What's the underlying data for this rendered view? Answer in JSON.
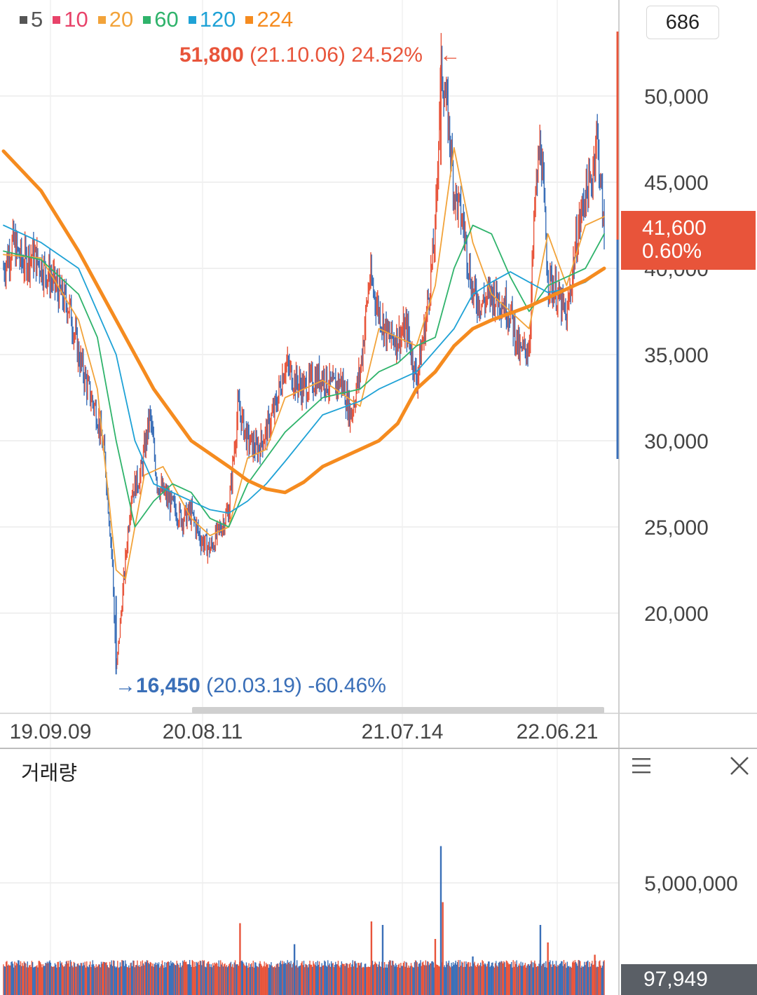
{
  "chart_data": [
    {
      "type": "line",
      "legend": [
        {
          "name": "5",
          "color": "#555555"
        },
        {
          "name": "10",
          "color": "#e8436a"
        },
        {
          "name": "20",
          "color": "#f2a33a"
        },
        {
          "name": "60",
          "color": "#2fb36b"
        },
        {
          "name": "120",
          "color": "#1fa2d6"
        },
        {
          "name": "224",
          "color": "#f58b1f"
        }
      ],
      "candle_up_color": "#e8543a",
      "candle_down_color": "#3a6fb8",
      "x_ticks": [
        "19.09.09",
        "20.08.11",
        "21.07.14",
        "22.06.21"
      ],
      "y_ticks": [
        "50,000",
        "45,000",
        "40,000",
        "35,000",
        "30,000",
        "25,000",
        "20,000"
      ],
      "ylim": [
        15000,
        55000
      ],
      "price_series": [
        {
          "t": 0,
          "v": 40000
        },
        {
          "t": 0.5,
          "v": 41500
        },
        {
          "t": 1,
          "v": 40300
        },
        {
          "t": 1.5,
          "v": 40800
        },
        {
          "t": 2,
          "v": 40200
        },
        {
          "t": 2.5,
          "v": 39500
        },
        {
          "t": 3,
          "v": 38500
        },
        {
          "t": 3.5,
          "v": 37800
        },
        {
          "t": 4,
          "v": 35000
        },
        {
          "t": 4.5,
          "v": 33000
        },
        {
          "t": 5,
          "v": 31500
        },
        {
          "t": 5.4,
          "v": 29000
        },
        {
          "t": 5.8,
          "v": 23000
        },
        {
          "t": 6.0,
          "v": 16450
        },
        {
          "t": 6.3,
          "v": 20500
        },
        {
          "t": 6.8,
          "v": 27000
        },
        {
          "t": 7.3,
          "v": 28000
        },
        {
          "t": 7.8,
          "v": 31500
        },
        {
          "t": 8.2,
          "v": 27500
        },
        {
          "t": 8.8,
          "v": 26500
        },
        {
          "t": 9.5,
          "v": 25500
        },
        {
          "t": 10,
          "v": 25800
        },
        {
          "t": 10.5,
          "v": 24300
        },
        {
          "t": 11,
          "v": 23700
        },
        {
          "t": 11.5,
          "v": 24800
        },
        {
          "t": 12,
          "v": 26000
        },
        {
          "t": 12.5,
          "v": 32000
        },
        {
          "t": 13,
          "v": 30000
        },
        {
          "t": 13.5,
          "v": 29500
        },
        {
          "t": 14,
          "v": 30500
        },
        {
          "t": 14.5,
          "v": 32000
        },
        {
          "t": 15,
          "v": 34500
        },
        {
          "t": 15.5,
          "v": 33500
        },
        {
          "t": 16,
          "v": 33000
        },
        {
          "t": 16.5,
          "v": 33500
        },
        {
          "t": 17,
          "v": 33800
        },
        {
          "t": 17.5,
          "v": 33000
        },
        {
          "t": 18,
          "v": 33500
        },
        {
          "t": 18.5,
          "v": 31500
        },
        {
          "t": 19,
          "v": 34000
        },
        {
          "t": 19.5,
          "v": 39500
        },
        {
          "t": 20,
          "v": 37500
        },
        {
          "t": 20.5,
          "v": 36000
        },
        {
          "t": 21,
          "v": 36000
        },
        {
          "t": 21.5,
          "v": 36500
        },
        {
          "t": 22,
          "v": 33500
        },
        {
          "t": 22.5,
          "v": 37000
        },
        {
          "t": 23,
          "v": 42000
        },
        {
          "t": 23.3,
          "v": 51800
        },
        {
          "t": 23.7,
          "v": 48500
        },
        {
          "t": 24,
          "v": 44500
        },
        {
          "t": 24.5,
          "v": 42500
        },
        {
          "t": 25,
          "v": 38500
        },
        {
          "t": 25.5,
          "v": 38000
        },
        {
          "t": 26,
          "v": 38500
        },
        {
          "t": 26.5,
          "v": 38200
        },
        {
          "t": 27,
          "v": 37500
        },
        {
          "t": 27.5,
          "v": 35000
        },
        {
          "t": 28,
          "v": 35500
        },
        {
          "t": 28.3,
          "v": 43500
        },
        {
          "t": 28.6,
          "v": 47500
        },
        {
          "t": 29,
          "v": 39500
        },
        {
          "t": 29.5,
          "v": 38500
        },
        {
          "t": 30,
          "v": 37000
        },
        {
          "t": 30.5,
          "v": 41500
        },
        {
          "t": 31,
          "v": 44500
        },
        {
          "t": 31.3,
          "v": 44800
        },
        {
          "t": 31.6,
          "v": 48000
        },
        {
          "t": 31.9,
          "v": 43500
        },
        {
          "t": 32,
          "v": 41600
        }
      ],
      "ma_series": [
        {
          "name": "20",
          "points": [
            {
              "t": 0,
              "v": 40800
            },
            {
              "t": 2,
              "v": 40600
            },
            {
              "t": 4,
              "v": 37000
            },
            {
              "t": 5,
              "v": 33000
            },
            {
              "t": 6,
              "v": 22500
            },
            {
              "t": 6.5,
              "v": 22000
            },
            {
              "t": 7.5,
              "v": 28000
            },
            {
              "t": 8.5,
              "v": 28500
            },
            {
              "t": 10,
              "v": 25500
            },
            {
              "t": 11,
              "v": 24500
            },
            {
              "t": 12,
              "v": 25000
            },
            {
              "t": 13,
              "v": 29000
            },
            {
              "t": 14,
              "v": 29500
            },
            {
              "t": 15,
              "v": 32500
            },
            {
              "t": 17,
              "v": 33500
            },
            {
              "t": 19,
              "v": 32000
            },
            {
              "t": 20,
              "v": 36500
            },
            {
              "t": 21,
              "v": 36000
            },
            {
              "t": 22,
              "v": 35500
            },
            {
              "t": 23,
              "v": 39000
            },
            {
              "t": 24,
              "v": 47000
            },
            {
              "t": 25,
              "v": 41500
            },
            {
              "t": 26,
              "v": 38500
            },
            {
              "t": 27,
              "v": 37500
            },
            {
              "t": 28,
              "v": 36500
            },
            {
              "t": 29,
              "v": 42000
            },
            {
              "t": 30,
              "v": 39000
            },
            {
              "t": 31,
              "v": 42500
            },
            {
              "t": 32,
              "v": 43000
            }
          ]
        },
        {
          "name": "60",
          "points": [
            {
              "t": 0,
              "v": 41000
            },
            {
              "t": 2,
              "v": 40500
            },
            {
              "t": 4,
              "v": 38500
            },
            {
              "t": 5,
              "v": 36000
            },
            {
              "t": 6,
              "v": 30000
            },
            {
              "t": 7,
              "v": 25000
            },
            {
              "t": 8,
              "v": 26500
            },
            {
              "t": 9,
              "v": 27500
            },
            {
              "t": 10,
              "v": 27000
            },
            {
              "t": 11,
              "v": 25500
            },
            {
              "t": 12,
              "v": 25000
            },
            {
              "t": 13,
              "v": 27500
            },
            {
              "t": 14,
              "v": 29000
            },
            {
              "t": 15,
              "v": 30500
            },
            {
              "t": 17,
              "v": 32500
            },
            {
              "t": 19,
              "v": 33000
            },
            {
              "t": 20,
              "v": 34000
            },
            {
              "t": 21,
              "v": 34500
            },
            {
              "t": 22,
              "v": 35500
            },
            {
              "t": 23,
              "v": 36000
            },
            {
              "t": 24,
              "v": 40000
            },
            {
              "t": 25,
              "v": 42500
            },
            {
              "t": 26,
              "v": 42000
            },
            {
              "t": 27,
              "v": 39500
            },
            {
              "t": 28,
              "v": 37500
            },
            {
              "t": 29,
              "v": 39000
            },
            {
              "t": 30,
              "v": 39500
            },
            {
              "t": 31,
              "v": 40000
            },
            {
              "t": 32,
              "v": 42000
            }
          ]
        },
        {
          "name": "120",
          "points": [
            {
              "t": 0,
              "v": 42500
            },
            {
              "t": 2,
              "v": 41500
            },
            {
              "t": 4,
              "v": 40000
            },
            {
              "t": 6,
              "v": 35000
            },
            {
              "t": 7,
              "v": 30000
            },
            {
              "t": 8,
              "v": 27500
            },
            {
              "t": 10,
              "v": 26500
            },
            {
              "t": 11,
              "v": 26000
            },
            {
              "t": 12,
              "v": 25800
            },
            {
              "t": 13,
              "v": 26500
            },
            {
              "t": 14,
              "v": 27500
            },
            {
              "t": 15,
              "v": 28800
            },
            {
              "t": 17,
              "v": 31500
            },
            {
              "t": 19,
              "v": 32300
            },
            {
              "t": 20,
              "v": 33000
            },
            {
              "t": 22,
              "v": 34000
            },
            {
              "t": 24,
              "v": 36500
            },
            {
              "t": 25,
              "v": 38500
            },
            {
              "t": 26,
              "v": 39200
            },
            {
              "t": 27,
              "v": 39800
            },
            {
              "t": 28,
              "v": 39200
            },
            {
              "t": 29,
              "v": 38600
            },
            {
              "t": 30,
              "v": 38800
            },
            {
              "t": 31,
              "v": 39200
            },
            {
              "t": 32,
              "v": 40000
            }
          ]
        },
        {
          "name": "224",
          "points": [
            {
              "t": 0,
              "v": 46800
            },
            {
              "t": 2,
              "v": 44500
            },
            {
              "t": 4,
              "v": 41000
            },
            {
              "t": 6,
              "v": 37000
            },
            {
              "t": 8,
              "v": 33000
            },
            {
              "t": 10,
              "v": 30000
            },
            {
              "t": 12,
              "v": 28500
            },
            {
              "t": 13,
              "v": 27700
            },
            {
              "t": 14,
              "v": 27200
            },
            {
              "t": 15,
              "v": 27000
            },
            {
              "t": 16,
              "v": 27600
            },
            {
              "t": 17,
              "v": 28500
            },
            {
              "t": 19,
              "v": 29500
            },
            {
              "t": 20,
              "v": 30000
            },
            {
              "t": 21,
              "v": 31000
            },
            {
              "t": 22,
              "v": 33000
            },
            {
              "t": 23,
              "v": 34000
            },
            {
              "t": 24,
              "v": 35500
            },
            {
              "t": 25,
              "v": 36500
            },
            {
              "t": 26,
              "v": 37000
            },
            {
              "t": 27,
              "v": 37400
            },
            {
              "t": 28,
              "v": 37800
            },
            {
              "t": 29,
              "v": 38300
            },
            {
              "t": 30,
              "v": 38800
            },
            {
              "t": 31,
              "v": 39300
            },
            {
              "t": 32,
              "v": 40000
            }
          ]
        }
      ],
      "annotations": {
        "high": {
          "price": "51,800",
          "detail": "(21.10.06) 24.52%",
          "arrow": "←"
        },
        "low": {
          "price": "16,450",
          "detail": "(20.03.19) -60.46%",
          "arrow": "→"
        }
      },
      "current": {
        "price": "41,600",
        "change": "0.60%"
      },
      "count_label": "686"
    },
    {
      "type": "bar",
      "title": "거래량",
      "y_ticks": [
        "5,000,000"
      ],
      "ylim": [
        0,
        7000000
      ],
      "spikes": [
        {
          "t": 12.6,
          "v": 2700000
        },
        {
          "t": 15.5,
          "v": 1500000
        },
        {
          "t": 19.6,
          "v": 2800000
        },
        {
          "t": 20.2,
          "v": 2600000
        },
        {
          "t": 23.0,
          "v": 1800000
        },
        {
          "t": 23.3,
          "v": 7100000
        },
        {
          "t": 23.4,
          "v": 3900000
        },
        {
          "t": 28.6,
          "v": 2600000
        },
        {
          "t": 29.0,
          "v": 1600000
        },
        {
          "t": 25.0,
          "v": 800000
        },
        {
          "t": 31.5,
          "v": 900000
        }
      ],
      "current_label": "97,949"
    }
  ]
}
